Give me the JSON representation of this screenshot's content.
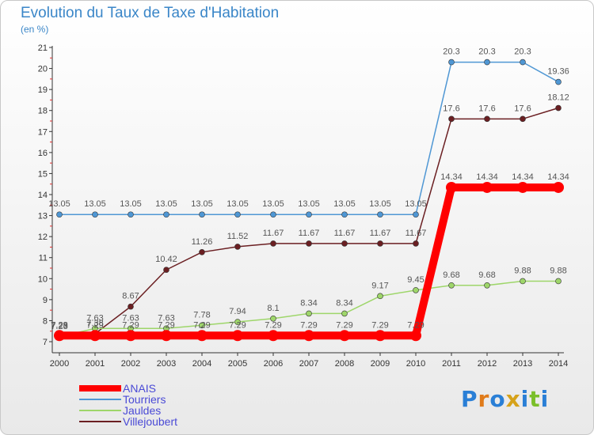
{
  "title": "Evolution du Taux de Taxe d'Habitation",
  "subtitle": "(en %)",
  "logo_text": "Proxiti",
  "chart_data": {
    "type": "line",
    "title": "Evolution du Taux de Taxe d'Habitation",
    "subtitle": "(en %)",
    "xlabel": "",
    "ylabel": "",
    "x": [
      2000,
      2001,
      2002,
      2003,
      2004,
      2005,
      2006,
      2007,
      2008,
      2009,
      2010,
      2011,
      2012,
      2013,
      2014
    ],
    "y_ticks": [
      7,
      8,
      9,
      10,
      11,
      12,
      13,
      14,
      15,
      16,
      17,
      18,
      19,
      20,
      21
    ],
    "ylim": [
      7,
      21
    ],
    "grid": false,
    "legend": "bottom-left",
    "series": [
      {
        "name": "ANAIS",
        "color": "#ff0000",
        "values": [
          7.29,
          7.29,
          7.29,
          7.29,
          7.29,
          7.29,
          7.29,
          7.29,
          7.29,
          7.29,
          7.29,
          14.34,
          14.34,
          14.34,
          14.34
        ]
      },
      {
        "name": "Tourriers",
        "color": "#4f97d4",
        "values": [
          13.05,
          13.05,
          13.05,
          13.05,
          13.05,
          13.05,
          13.05,
          13.05,
          13.05,
          13.05,
          13.05,
          20.3,
          20.3,
          20.3,
          19.36
        ]
      },
      {
        "name": "Jauldes",
        "color": "#9ed66a",
        "values": [
          7.23,
          7.63,
          7.63,
          7.63,
          7.78,
          7.94,
          8.1,
          8.34,
          8.34,
          9.17,
          9.45,
          9.68,
          9.68,
          9.88,
          9.88
        ]
      },
      {
        "name": "Villejoubert",
        "color": "#6b1f22",
        "values": [
          7.28,
          7.38,
          8.67,
          10.42,
          11.26,
          11.52,
          11.67,
          11.67,
          11.67,
          11.67,
          11.67,
          17.6,
          17.6,
          17.6,
          18.12
        ]
      }
    ]
  }
}
